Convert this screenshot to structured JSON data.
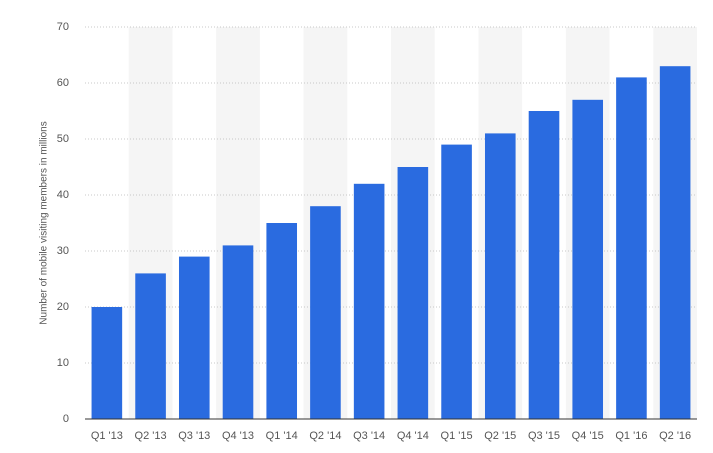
{
  "chart_data": {
    "type": "bar",
    "y_label": "Number of mobile visiting members in millions",
    "categories": [
      "Q1 '13",
      "Q2 '13",
      "Q3 '13",
      "Q4 '13",
      "Q1 '14",
      "Q2 '14",
      "Q3 '14",
      "Q4 '14",
      "Q1 '15",
      "Q2 '15",
      "Q3 '15",
      "Q4 '15",
      "Q1 '16",
      "Q2 '16"
    ],
    "values": [
      20,
      26,
      29,
      31,
      35,
      38,
      42,
      45,
      49,
      51,
      55,
      57,
      61,
      63
    ],
    "color": "#2a6be0",
    "ylim": [
      0,
      70
    ],
    "yticks": [
      0,
      10,
      20,
      30,
      40,
      50,
      60,
      70
    ],
    "grid": true
  }
}
